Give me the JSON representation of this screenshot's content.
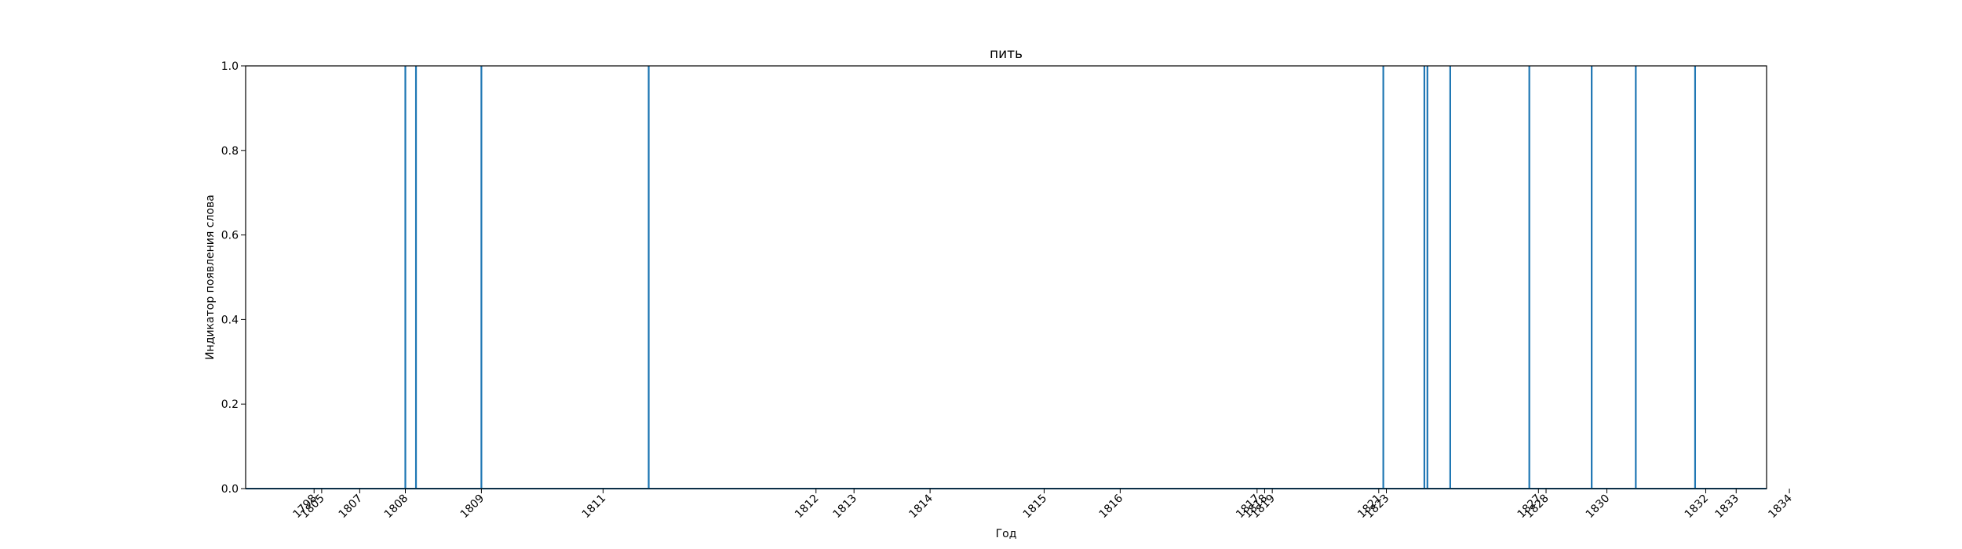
{
  "chart_data": {
    "type": "line",
    "title": "пить",
    "xlabel": "Год",
    "ylabel": "Индикатор появления слова",
    "ylim": [
      0,
      1
    ],
    "y_ticks": [
      "0.0",
      "0.2",
      "0.4",
      "0.6",
      "0.8",
      "1.0"
    ],
    "y_tick_values": [
      0,
      0.2,
      0.4,
      0.6,
      0.8,
      1.0
    ],
    "x_tick_labels": [
      "1798",
      "1805",
      "1807",
      "1808",
      "1809",
      "1811",
      "1812",
      "1813",
      "1814",
      "1815",
      "1816",
      "1817",
      "1818",
      "1819",
      "1821",
      "1823",
      "1827",
      "1828",
      "1830",
      "1832",
      "1833",
      "1834"
    ],
    "x_tick_positions": [
      4.5,
      5.0,
      7.5,
      10.5,
      15.5,
      23.5,
      37.5,
      40.0,
      45.0,
      52.5,
      57.5,
      66.5,
      67.0,
      67.5,
      74.5,
      75.0,
      85.0,
      85.5,
      89.5,
      96.0,
      98.0,
      101.5
    ],
    "xlim": [
      0,
      100
    ],
    "grid": false,
    "series": [
      {
        "color": "#1f77b4",
        "spikes": [
          10.5,
          11.2,
          15.5,
          26.5,
          74.8,
          77.5,
          77.7,
          79.2,
          84.4,
          88.5,
          91.4,
          95.3
        ]
      }
    ]
  }
}
